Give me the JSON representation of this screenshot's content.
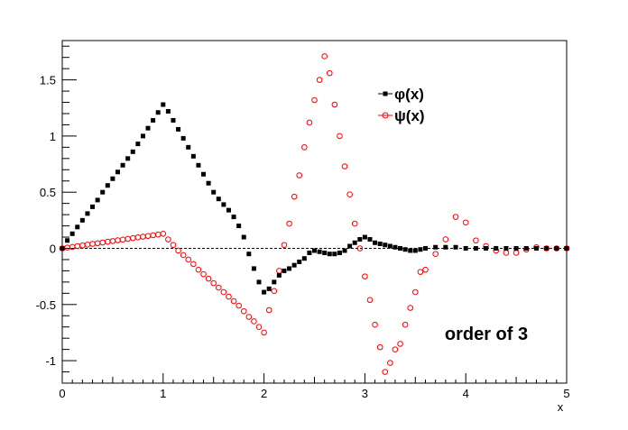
{
  "chart_data": {
    "type": "scatter",
    "xlabel": "x",
    "ylabel": "",
    "xlim": [
      0,
      5
    ],
    "ylim": [
      -1.2,
      1.85
    ],
    "x_ticks": [
      "0",
      "1",
      "2",
      "3",
      "4",
      "5"
    ],
    "y_ticks": [
      "-1",
      "-0.5",
      "0",
      "0.5",
      "1",
      "1.5"
    ],
    "grid": false,
    "legend_position": "top-right",
    "annotation": "order of 3",
    "colors": {
      "phi": "#000000",
      "psi": "#ff0000",
      "zero_line": "#000000"
    },
    "series": [
      {
        "name": "φ(x)",
        "marker": "filled-square",
        "points": [
          [
            0.0,
            0.0
          ],
          [
            0.05,
            0.07
          ],
          [
            0.1,
            0.13
          ],
          [
            0.15,
            0.19
          ],
          [
            0.2,
            0.25
          ],
          [
            0.25,
            0.31
          ],
          [
            0.3,
            0.37
          ],
          [
            0.35,
            0.43
          ],
          [
            0.4,
            0.5
          ],
          [
            0.45,
            0.56
          ],
          [
            0.5,
            0.62
          ],
          [
            0.55,
            0.68
          ],
          [
            0.6,
            0.74
          ],
          [
            0.65,
            0.8
          ],
          [
            0.7,
            0.86
          ],
          [
            0.75,
            0.93
          ],
          [
            0.8,
            1.0
          ],
          [
            0.85,
            1.07
          ],
          [
            0.9,
            1.14
          ],
          [
            0.95,
            1.21
          ],
          [
            1.0,
            1.28
          ],
          [
            1.05,
            1.22
          ],
          [
            1.1,
            1.14
          ],
          [
            1.15,
            1.06
          ],
          [
            1.2,
            0.98
          ],
          [
            1.25,
            0.9
          ],
          [
            1.3,
            0.82
          ],
          [
            1.35,
            0.74
          ],
          [
            1.4,
            0.66
          ],
          [
            1.45,
            0.58
          ],
          [
            1.5,
            0.5
          ],
          [
            1.55,
            0.44
          ],
          [
            1.6,
            0.39
          ],
          [
            1.65,
            0.34
          ],
          [
            1.7,
            0.28
          ],
          [
            1.75,
            0.2
          ],
          [
            1.8,
            0.1
          ],
          [
            1.85,
            -0.05
          ],
          [
            1.9,
            -0.18
          ],
          [
            1.95,
            -0.3
          ],
          [
            2.0,
            -0.39
          ],
          [
            2.05,
            -0.36
          ],
          [
            2.1,
            -0.3
          ],
          [
            2.15,
            -0.24
          ],
          [
            2.2,
            -0.2
          ],
          [
            2.25,
            -0.18
          ],
          [
            2.3,
            -0.15
          ],
          [
            2.35,
            -0.12
          ],
          [
            2.4,
            -0.09
          ],
          [
            2.45,
            -0.04
          ],
          [
            2.5,
            -0.02
          ],
          [
            2.55,
            -0.03
          ],
          [
            2.6,
            -0.04
          ],
          [
            2.65,
            -0.05
          ],
          [
            2.7,
            -0.05
          ],
          [
            2.75,
            -0.04
          ],
          [
            2.8,
            -0.02
          ],
          [
            2.85,
            0.02
          ],
          [
            2.9,
            0.05
          ],
          [
            2.95,
            0.08
          ],
          [
            3.0,
            0.1
          ],
          [
            3.05,
            0.08
          ],
          [
            3.1,
            0.05
          ],
          [
            3.15,
            0.04
          ],
          [
            3.2,
            0.03
          ],
          [
            3.25,
            0.02
          ],
          [
            3.3,
            0.01
          ],
          [
            3.35,
            0.0
          ],
          [
            3.4,
            -0.01
          ],
          [
            3.45,
            -0.02
          ],
          [
            3.5,
            -0.02
          ],
          [
            3.55,
            -0.01
          ],
          [
            3.6,
            0.0
          ],
          [
            3.7,
            0.01
          ],
          [
            3.8,
            0.01
          ],
          [
            3.9,
            0.01
          ],
          [
            4.0,
            0.0
          ],
          [
            4.1,
            0.0
          ],
          [
            4.2,
            0.0
          ],
          [
            4.3,
            0.0
          ],
          [
            4.4,
            0.0
          ],
          [
            4.5,
            0.0
          ],
          [
            4.6,
            0.0
          ],
          [
            4.7,
            0.0
          ],
          [
            4.8,
            0.0
          ],
          [
            4.9,
            0.0
          ],
          [
            5.0,
            0.0
          ]
        ]
      },
      {
        "name": "ψ(x)",
        "marker": "open-circle",
        "points": [
          [
            0.0,
            0.0
          ],
          [
            0.05,
            0.007
          ],
          [
            0.1,
            0.013
          ],
          [
            0.15,
            0.02
          ],
          [
            0.2,
            0.026
          ],
          [
            0.25,
            0.033
          ],
          [
            0.3,
            0.04
          ],
          [
            0.35,
            0.046
          ],
          [
            0.4,
            0.052
          ],
          [
            0.45,
            0.059
          ],
          [
            0.5,
            0.065
          ],
          [
            0.55,
            0.072
          ],
          [
            0.6,
            0.078
          ],
          [
            0.65,
            0.085
          ],
          [
            0.7,
            0.091
          ],
          [
            0.75,
            0.098
          ],
          [
            0.8,
            0.104
          ],
          [
            0.85,
            0.11
          ],
          [
            0.9,
            0.117
          ],
          [
            0.95,
            0.123
          ],
          [
            1.0,
            0.13
          ],
          [
            1.05,
            0.08
          ],
          [
            1.1,
            0.03
          ],
          [
            1.15,
            -0.02
          ],
          [
            1.2,
            -0.06
          ],
          [
            1.25,
            -0.1
          ],
          [
            1.3,
            -0.14
          ],
          [
            1.35,
            -0.19
          ],
          [
            1.4,
            -0.23
          ],
          [
            1.45,
            -0.27
          ],
          [
            1.5,
            -0.31
          ],
          [
            1.55,
            -0.35
          ],
          [
            1.6,
            -0.39
          ],
          [
            1.65,
            -0.43
          ],
          [
            1.7,
            -0.47
          ],
          [
            1.75,
            -0.51
          ],
          [
            1.8,
            -0.56
          ],
          [
            1.85,
            -0.61
          ],
          [
            1.9,
            -0.65
          ],
          [
            1.95,
            -0.7
          ],
          [
            2.0,
            -0.75
          ],
          [
            2.05,
            -0.55
          ],
          [
            2.1,
            -0.38
          ],
          [
            2.15,
            -0.2
          ],
          [
            2.2,
            0.03
          ],
          [
            2.25,
            0.22
          ],
          [
            2.3,
            0.46
          ],
          [
            2.35,
            0.65
          ],
          [
            2.4,
            0.9
          ],
          [
            2.45,
            1.12
          ],
          [
            2.5,
            1.32
          ],
          [
            2.55,
            1.5
          ],
          [
            2.6,
            1.71
          ],
          [
            2.65,
            1.56
          ],
          [
            2.7,
            1.28
          ],
          [
            2.75,
            1.0
          ],
          [
            2.8,
            0.73
          ],
          [
            2.85,
            0.48
          ],
          [
            2.9,
            0.22
          ],
          [
            2.95,
            0.0
          ],
          [
            3.0,
            -0.25
          ],
          [
            3.05,
            -0.46
          ],
          [
            3.1,
            -0.68
          ],
          [
            3.15,
            -0.88
          ],
          [
            3.2,
            -1.1
          ],
          [
            3.25,
            -1.02
          ],
          [
            3.3,
            -0.9
          ],
          [
            3.35,
            -0.85
          ],
          [
            3.4,
            -0.68
          ],
          [
            3.45,
            -0.53
          ],
          [
            3.5,
            -0.39
          ],
          [
            3.55,
            -0.21
          ],
          [
            3.6,
            -0.19
          ],
          [
            3.7,
            -0.05
          ],
          [
            3.8,
            0.08
          ],
          [
            3.9,
            0.28
          ],
          [
            4.0,
            0.23
          ],
          [
            4.1,
            0.07
          ],
          [
            4.2,
            0.02
          ],
          [
            4.3,
            -0.02
          ],
          [
            4.4,
            -0.04
          ],
          [
            4.5,
            -0.04
          ],
          [
            4.6,
            -0.01
          ],
          [
            4.7,
            0.01
          ],
          [
            4.8,
            0.0
          ],
          [
            4.9,
            0.0
          ],
          [
            5.0,
            0.0
          ]
        ]
      }
    ]
  }
}
